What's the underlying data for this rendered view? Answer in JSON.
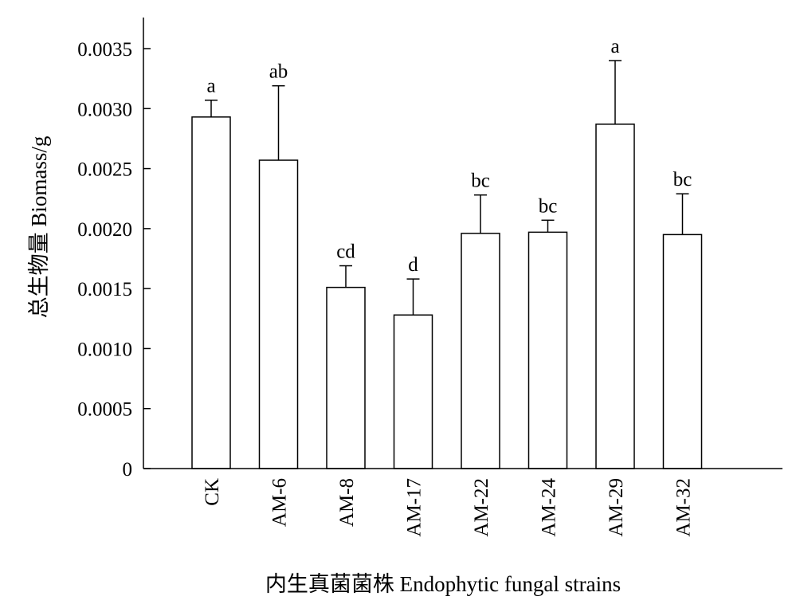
{
  "chart_data": {
    "type": "bar",
    "categories": [
      "CK",
      "AM-6",
      "AM-8",
      "AM-17",
      "AM-22",
      "AM-24",
      "AM-29",
      "AM-32"
    ],
    "values": [
      0.00293,
      0.00257,
      0.00151,
      0.00128,
      0.00196,
      0.00197,
      0.00287,
      0.00195
    ],
    "error_upper": [
      0.00307,
      0.00319,
      0.00169,
      0.00158,
      0.00228,
      0.00207,
      0.0034,
      0.00229
    ],
    "significance_letters": [
      "a",
      "ab",
      "cd",
      "d",
      "bc",
      "bc",
      "a",
      "bc"
    ],
    "ylabel": "总生物量 Biomass/g",
    "xlabel": "内生真菌菌株 Endophytic fungal strains",
    "ylim": [
      0,
      0.0035
    ],
    "yticks": [
      0,
      0.0005,
      0.001,
      0.0015,
      0.002,
      0.0025,
      0.003,
      0.0035
    ],
    "ytick_labels": [
      "0",
      "0.0005",
      "0.0010",
      "0.0015",
      "0.0020",
      "0.0025",
      "0.0030",
      "0.0035"
    ],
    "grid": false,
    "legend": "none"
  }
}
